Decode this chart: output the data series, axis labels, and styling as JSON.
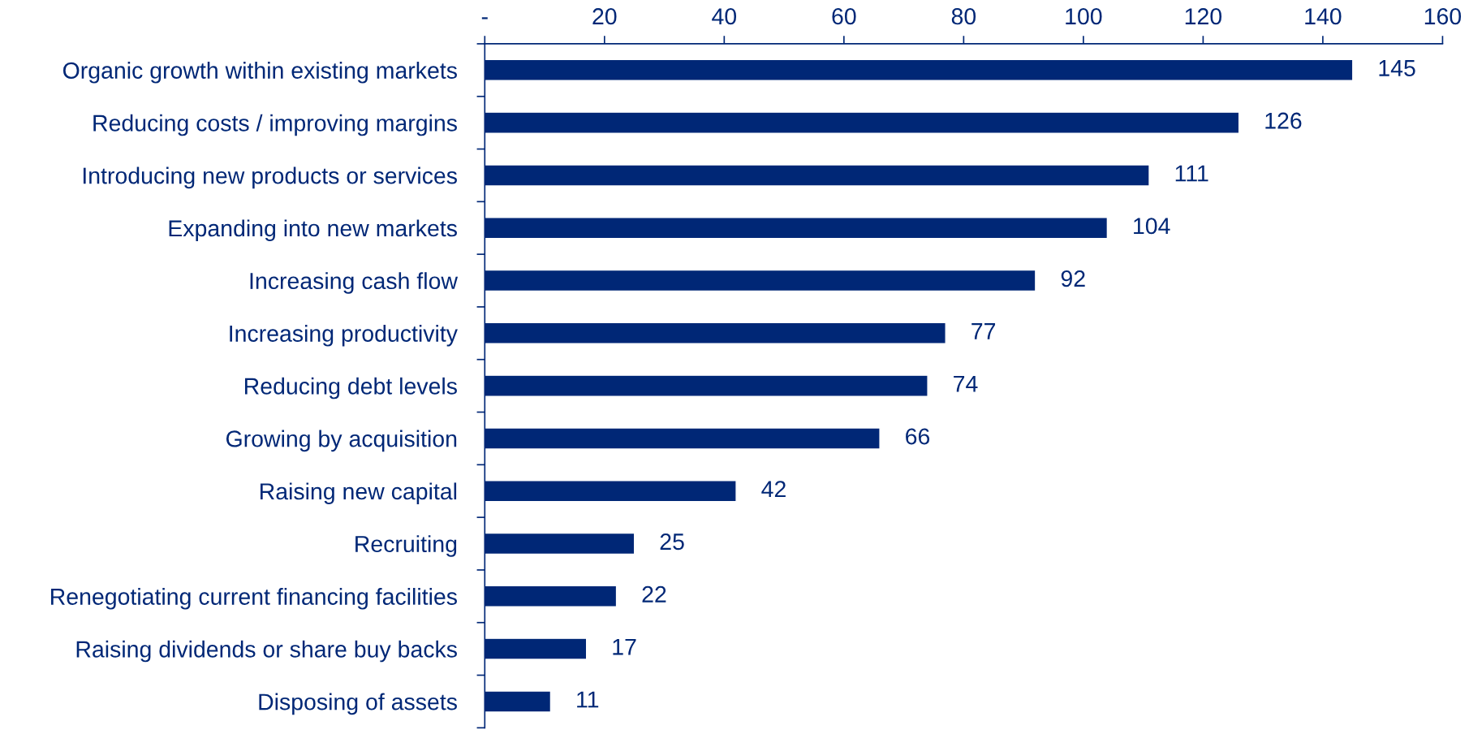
{
  "chart_data": {
    "type": "bar",
    "orientation": "horizontal",
    "categories": [
      "Organic growth within existing markets",
      "Reducing costs / improving margins",
      "Introducing new products or services",
      "Expanding into new markets",
      "Increasing cash flow",
      "Increasing productivity",
      "Reducing debt levels",
      "Growing by acquisition",
      "Raising new capital",
      "Recruiting",
      "Renegotiating current financing facilities",
      "Raising dividends or share buy backs",
      "Disposing of assets"
    ],
    "values": [
      145,
      126,
      111,
      104,
      92,
      77,
      74,
      66,
      42,
      25,
      22,
      17,
      11
    ],
    "color": "#002776",
    "xlim": [
      0,
      160
    ],
    "xticks": [
      {
        "value": 0,
        "label": "-"
      },
      20,
      40,
      60,
      80,
      100,
      120,
      140,
      160
    ],
    "data_labels": true,
    "grid": false,
    "legend": false
  }
}
